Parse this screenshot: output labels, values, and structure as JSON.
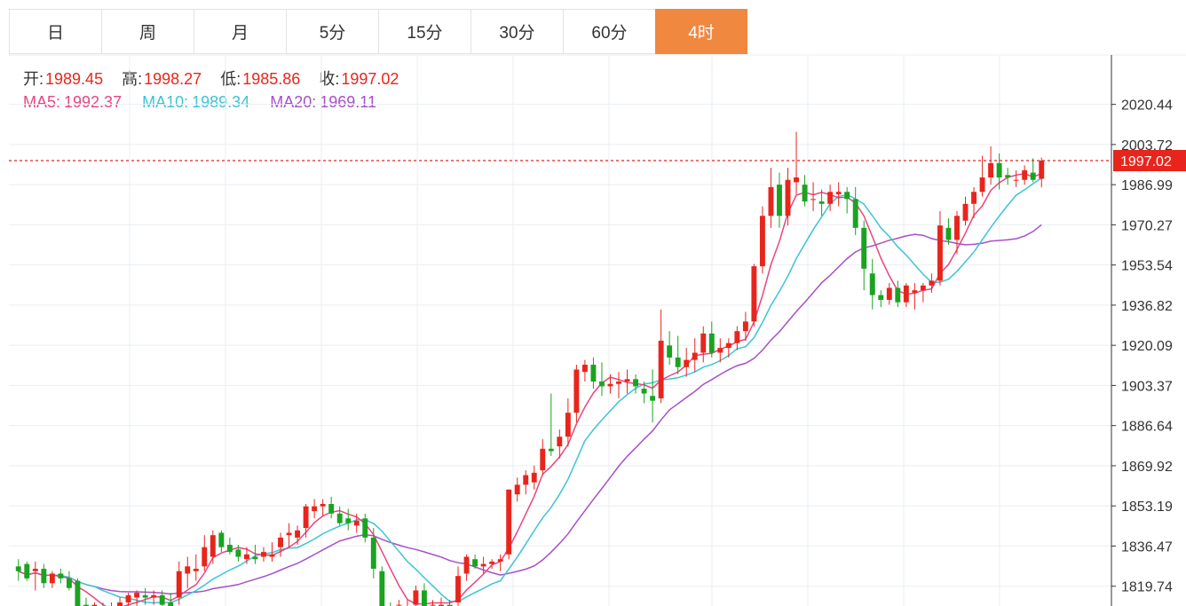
{
  "tabs": [
    {
      "label": "日",
      "active": false
    },
    {
      "label": "周",
      "active": false
    },
    {
      "label": "月",
      "active": false
    },
    {
      "label": "5分",
      "active": false
    },
    {
      "label": "15分",
      "active": false
    },
    {
      "label": "30分",
      "active": false
    },
    {
      "label": "60分",
      "active": false
    },
    {
      "label": "4时",
      "active": true
    }
  ],
  "ohlc": {
    "open_label": "开:",
    "open": "1989.45",
    "high_label": "高:",
    "high": "1998.27",
    "low_label": "低:",
    "low": "1985.86",
    "close_label": "收:",
    "close": "1997.02"
  },
  "ma": {
    "ma5_label": "MA5:",
    "ma5": "1992.37",
    "ma10_label": "MA10:",
    "ma10": "1989.34",
    "ma20_label": "MA20:",
    "ma20": "1969.11"
  },
  "colors": {
    "up": "#e8251c",
    "down": "#1aa321",
    "ma5": "#e8467f",
    "ma10": "#3cc4d6",
    "ma20": "#a84fc8",
    "accent": "#f0883f",
    "grid": "#e9eef3"
  },
  "chart_data": {
    "type": "candlestick",
    "yticks": [
      2020.44,
      2003.72,
      1986.99,
      1970.27,
      1953.54,
      1936.82,
      1920.09,
      1903.37,
      1886.64,
      1869.92,
      1853.19,
      1836.47,
      1819.74
    ],
    "ylim": [
      1811.5,
      2041.0
    ],
    "last_price": "1997.02",
    "candles": [
      [
        1828,
        1831,
        1822,
        1826
      ],
      [
        1829,
        1830,
        1822,
        1823
      ],
      [
        1826,
        1830,
        1818,
        1827
      ],
      [
        1827,
        1829,
        1819,
        1821
      ],
      [
        1821,
        1826,
        1819,
        1825
      ],
      [
        1825,
        1827,
        1821,
        1823
      ],
      [
        1823,
        1826,
        1818,
        1819
      ],
      [
        1822,
        1823,
        1809,
        1810
      ],
      [
        1812,
        1815,
        1808,
        1810
      ],
      [
        1810,
        1813,
        1807,
        1812
      ],
      [
        1811,
        1813,
        1808,
        1809
      ],
      [
        1809,
        1813,
        1806,
        1810
      ],
      [
        1808,
        1815,
        1806,
        1813
      ],
      [
        1813,
        1817,
        1808,
        1816
      ],
      [
        1815,
        1818,
        1810,
        1817
      ],
      [
        1816,
        1819,
        1812,
        1815
      ],
      [
        1815,
        1818,
        1812,
        1816
      ],
      [
        1816,
        1818,
        1811,
        1812
      ],
      [
        1813,
        1817,
        1806,
        1809
      ],
      [
        1815,
        1830,
        1812,
        1826
      ],
      [
        1825,
        1832,
        1819,
        1828
      ],
      [
        1826,
        1833,
        1822,
        1827
      ],
      [
        1828,
        1841,
        1826,
        1836
      ],
      [
        1832,
        1843,
        1829,
        1841
      ],
      [
        1842,
        1843,
        1834,
        1836
      ],
      [
        1837,
        1840,
        1833,
        1834
      ],
      [
        1835,
        1837,
        1830,
        1832
      ],
      [
        1831,
        1836,
        1829,
        1833
      ],
      [
        1832,
        1837,
        1829,
        1831
      ],
      [
        1832,
        1836,
        1830,
        1834
      ],
      [
        1832,
        1838,
        1830,
        1833
      ],
      [
        1836,
        1842,
        1832,
        1840
      ],
      [
        1841,
        1846,
        1836,
        1842
      ],
      [
        1840,
        1845,
        1837,
        1843
      ],
      [
        1844,
        1854,
        1840,
        1853
      ],
      [
        1851,
        1856,
        1848,
        1853
      ],
      [
        1853,
        1856,
        1849,
        1854
      ],
      [
        1854,
        1857,
        1848,
        1850
      ],
      [
        1850,
        1853,
        1845,
        1846
      ],
      [
        1848,
        1852,
        1843,
        1846
      ],
      [
        1845,
        1850,
        1842,
        1847
      ],
      [
        1848,
        1850,
        1838,
        1840
      ],
      [
        1840,
        1844,
        1823,
        1827
      ],
      [
        1826,
        1828,
        1808,
        1811
      ],
      [
        1811,
        1813,
        1808,
        1810
      ],
      [
        1812,
        1814,
        1809,
        1812
      ],
      [
        1811,
        1814,
        1808,
        1811
      ],
      [
        1812,
        1820,
        1809,
        1818
      ],
      [
        1818,
        1821,
        1811,
        1811
      ],
      [
        1812,
        1814,
        1809,
        1812
      ],
      [
        1811,
        1815,
        1810,
        1812
      ],
      [
        1812,
        1814,
        1809,
        1811
      ],
      [
        1813,
        1828,
        1811,
        1824
      ],
      [
        1825,
        1833,
        1822,
        1832
      ],
      [
        1831,
        1833,
        1827,
        1828
      ],
      [
        1828,
        1832,
        1825,
        1829
      ],
      [
        1829,
        1831,
        1827,
        1830
      ],
      [
        1830,
        1833,
        1826,
        1831
      ],
      [
        1833,
        1860,
        1831,
        1860
      ],
      [
        1858,
        1865,
        1855,
        1862
      ],
      [
        1862,
        1868,
        1858,
        1866
      ],
      [
        1863,
        1870,
        1860,
        1867
      ],
      [
        1868,
        1881,
        1866,
        1877
      ],
      [
        1877,
        1900,
        1874,
        1876
      ],
      [
        1878,
        1885,
        1873,
        1882
      ],
      [
        1882,
        1898,
        1878,
        1892
      ],
      [
        1892,
        1912,
        1888,
        1910
      ],
      [
        1909,
        1914,
        1905,
        1912
      ],
      [
        1912,
        1915,
        1902,
        1905
      ],
      [
        1905,
        1913,
        1899,
        1903
      ],
      [
        1903,
        1908,
        1900,
        1904
      ],
      [
        1904,
        1909,
        1898,
        1905
      ],
      [
        1905,
        1910,
        1900,
        1906
      ],
      [
        1906,
        1908,
        1900,
        1903
      ],
      [
        1902,
        1905,
        1896,
        1900
      ],
      [
        1899,
        1910,
        1888,
        1897
      ],
      [
        1898,
        1935,
        1896,
        1922
      ],
      [
        1920,
        1926,
        1912,
        1915
      ],
      [
        1915,
        1924,
        1908,
        1911
      ],
      [
        1911,
        1919,
        1907,
        1914
      ],
      [
        1914,
        1923,
        1909,
        1917
      ],
      [
        1917,
        1928,
        1913,
        1925
      ],
      [
        1925,
        1930,
        1915,
        1917
      ],
      [
        1917,
        1923,
        1913,
        1919
      ],
      [
        1919,
        1923,
        1915,
        1921
      ],
      [
        1921,
        1928,
        1918,
        1926
      ],
      [
        1926,
        1934,
        1922,
        1930
      ],
      [
        1930,
        1954,
        1928,
        1953
      ],
      [
        1953,
        1978,
        1950,
        1974
      ],
      [
        1974,
        1994,
        1969,
        1986
      ],
      [
        1987,
        1992,
        1969,
        1974
      ],
      [
        1974,
        1994,
        1970,
        1989
      ],
      [
        1988,
        2009,
        1983,
        1990
      ],
      [
        1987,
        1991,
        1978,
        1980
      ],
      [
        1981,
        1988,
        1976,
        1981
      ],
      [
        1980,
        1985,
        1974,
        1979
      ],
      [
        1979,
        1987,
        1976,
        1984
      ],
      [
        1983,
        1988,
        1978,
        1984
      ],
      [
        1984,
        1986,
        1975,
        1981
      ],
      [
        1981,
        1986,
        1966,
        1969
      ],
      [
        1969,
        1972,
        1943,
        1952
      ],
      [
        1950,
        1956,
        1935,
        1941
      ],
      [
        1941,
        1943,
        1936,
        1939
      ],
      [
        1939,
        1946,
        1937,
        1944
      ],
      [
        1944,
        1947,
        1936,
        1938
      ],
      [
        1938,
        1946,
        1936,
        1945
      ],
      [
        1942,
        1946,
        1935,
        1943
      ],
      [
        1943,
        1946,
        1938,
        1945
      ],
      [
        1945,
        1950,
        1942,
        1947
      ],
      [
        1947,
        1976,
        1945,
        1970
      ],
      [
        1969,
        1973,
        1962,
        1964
      ],
      [
        1964,
        1976,
        1958,
        1974
      ],
      [
        1972,
        1982,
        1970,
        1979
      ],
      [
        1979,
        1986,
        1973,
        1984
      ],
      [
        1984,
        1999,
        1982,
        1990
      ],
      [
        1990,
        2003,
        1987,
        1996
      ],
      [
        1996,
        2000,
        1985,
        1990
      ],
      [
        1991,
        1994,
        1987,
        1990
      ],
      [
        1989,
        1993,
        1986,
        1989
      ],
      [
        1989,
        1995,
        1987,
        1993
      ],
      [
        1992,
        1998,
        1988,
        1989
      ],
      [
        1989.45,
        1998.27,
        1985.86,
        1997.02
      ]
    ]
  }
}
